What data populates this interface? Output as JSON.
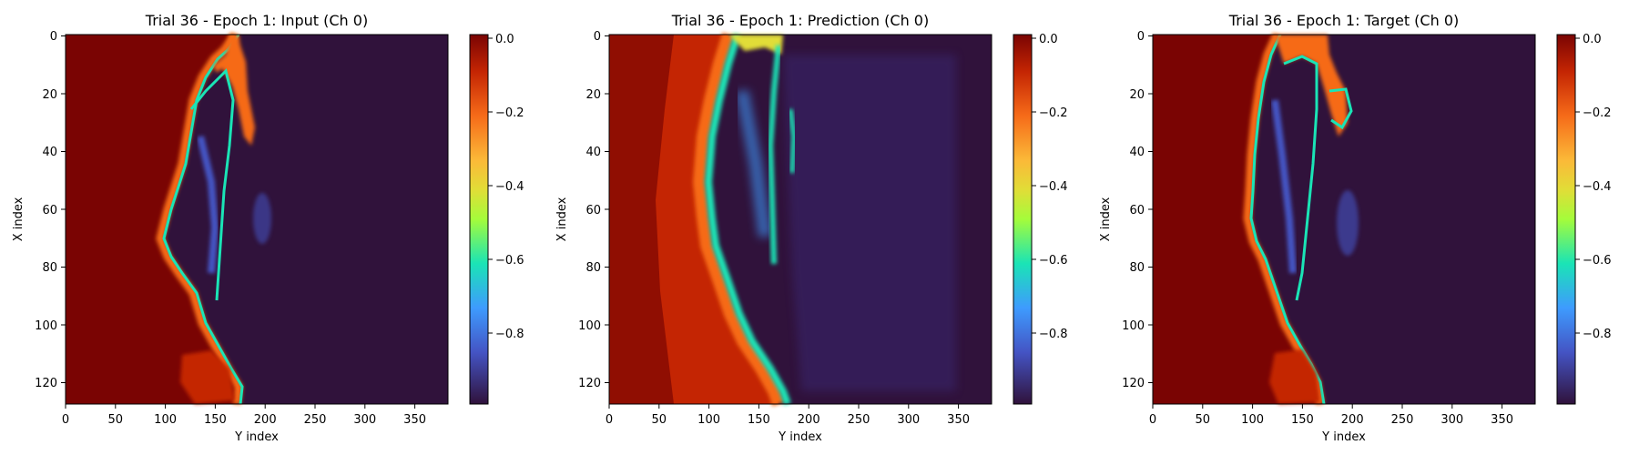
{
  "chart_data": [
    {
      "type": "heatmap",
      "title": "Trial 36 - Epoch 1: Input (Ch 0)",
      "xlabel": "Y index",
      "ylabel": "X index",
      "xlim": [
        0,
        383
      ],
      "ylim": [
        127,
        0
      ],
      "xticks": [
        "0",
        "50",
        "100",
        "150",
        "200",
        "250",
        "300",
        "350"
      ],
      "yticks": [
        "0",
        "20",
        "40",
        "60",
        "80",
        "100",
        "120"
      ],
      "colorbar": {
        "colormap": "turbo",
        "range": [
          -1.0,
          0.0
        ],
        "ticks": [
          "0.0",
          "−0.2",
          "−0.4",
          "−0.6",
          "−0.8"
        ]
      }
    },
    {
      "type": "heatmap",
      "title": "Trial 36 - Epoch 1: Prediction (Ch 0)",
      "xlabel": "Y index",
      "ylabel": "X index",
      "xlim": [
        0,
        383
      ],
      "ylim": [
        127,
        0
      ],
      "xticks": [
        "0",
        "50",
        "100",
        "150",
        "200",
        "250",
        "300",
        "350"
      ],
      "yticks": [
        "0",
        "20",
        "40",
        "60",
        "80",
        "100",
        "120"
      ],
      "colorbar": {
        "colormap": "turbo",
        "range": [
          -1.0,
          0.0
        ],
        "ticks": [
          "0.0",
          "−0.2",
          "−0.4",
          "−0.6",
          "−0.8"
        ]
      }
    },
    {
      "type": "heatmap",
      "title": "Trial 36 - Epoch 1: Target (Ch 0)",
      "xlabel": "Y index",
      "ylabel": "X index",
      "xlim": [
        0,
        383
      ],
      "ylim": [
        127,
        0
      ],
      "xticks": [
        "0",
        "50",
        "100",
        "150",
        "200",
        "250",
        "300",
        "350"
      ],
      "yticks": [
        "0",
        "20",
        "40",
        "60",
        "80",
        "100",
        "120"
      ],
      "colorbar": {
        "colormap": "turbo",
        "range": [
          -1.0,
          0.0
        ],
        "ticks": [
          "0.0",
          "−0.2",
          "−0.4",
          "−0.6",
          "−0.8"
        ]
      }
    }
  ],
  "colors": {
    "high": "#7a0403",
    "mid_high": "#c42503",
    "orange": "#f66b19",
    "yellow": "#e1dd37",
    "green": "#a4fc3b",
    "cyan": "#1ae4b6",
    "blue": "#3e9bfe",
    "indigo": "#4454c4",
    "low": "#30123b"
  }
}
